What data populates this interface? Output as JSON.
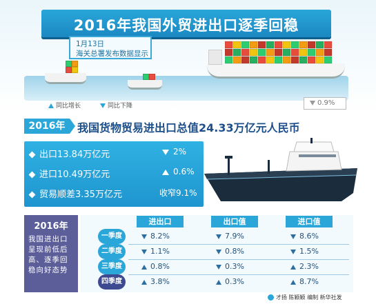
{
  "header": {
    "title": "2016年我国外贸进出口逐季回稳",
    "flag_line1": "1月13日",
    "flag_line2": "海关总署发布数据显示"
  },
  "legend": {
    "up": "同比增长",
    "down": "同比下降"
  },
  "badge": {
    "value": "0.9%",
    "direction": "down"
  },
  "headline": {
    "year": "2016年",
    "text": "我国货物贸易进出口总值24.33万亿元人民币"
  },
  "trade": [
    {
      "label": "出口13.84万亿元",
      "direction": "down",
      "value": "2%"
    },
    {
      "label": "进口10.49万亿元",
      "direction": "up",
      "value": "0.6%"
    },
    {
      "label": "贸易顺差3.35万亿元",
      "direction": "none",
      "value": "收窄9.1%"
    }
  ],
  "summary": {
    "year": "2016年",
    "text": "我国进出口呈现前低后高、逐季回稳向好态势"
  },
  "table": {
    "columns": [
      "进出口",
      "出口值",
      "进口值"
    ],
    "rows": [
      {
        "quarter": "一季度",
        "cells": [
          {
            "dir": "down",
            "v": "8.2%"
          },
          {
            "dir": "down",
            "v": "7.9%"
          },
          {
            "dir": "down",
            "v": "8.6%"
          }
        ]
      },
      {
        "quarter": "二季度",
        "cells": [
          {
            "dir": "down",
            "v": "1.1%"
          },
          {
            "dir": "down",
            "v": "0.8%"
          },
          {
            "dir": "down",
            "v": "1.5%"
          }
        ]
      },
      {
        "quarter": "三季度",
        "cells": [
          {
            "dir": "up",
            "v": "0.8%"
          },
          {
            "dir": "down",
            "v": "0.3%"
          },
          {
            "dir": "up",
            "v": "2.3%"
          }
        ]
      },
      {
        "quarter": "四季度",
        "cells": [
          {
            "dir": "up",
            "v": "3.8%"
          },
          {
            "dir": "up",
            "v": "0.3%"
          },
          {
            "dir": "up",
            "v": "8.7%"
          }
        ]
      }
    ]
  },
  "credit": "才扬 陈颖颖 编制 新华社发",
  "colors": {
    "accent": "#2aa6d9",
    "dark": "#5c5e9a",
    "navy": "#1d4f8a"
  }
}
